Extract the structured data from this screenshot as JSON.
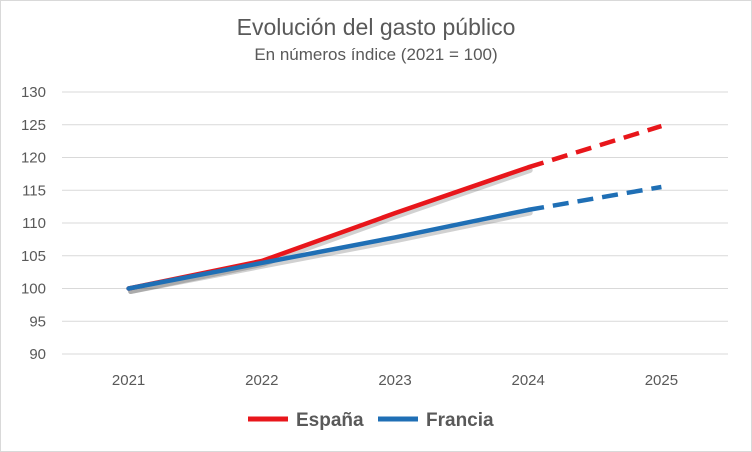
{
  "chart_data": {
    "type": "line",
    "title": "Evolución del gasto público",
    "subtitle": "En números índice (2021 = 100)",
    "categories": [
      "2021",
      "2022",
      "2023",
      "2024",
      "2025"
    ],
    "ylim": [
      90,
      130
    ],
    "yticks": [
      90,
      95,
      100,
      105,
      110,
      115,
      120,
      125,
      130
    ],
    "grid": true,
    "legend_position": "bottom",
    "series": [
      {
        "name": "España",
        "color": "#e8161b",
        "values": [
          100,
          104.2,
          111.5,
          118.5,
          124.8
        ],
        "solid_until": "2024",
        "dashed_after": "2024"
      },
      {
        "name": "Francia",
        "color": "#1f6fb5",
        "values": [
          100,
          103.9,
          107.8,
          112.0,
          115.5
        ],
        "solid_until": "2024",
        "dashed_after": "2024"
      }
    ]
  }
}
